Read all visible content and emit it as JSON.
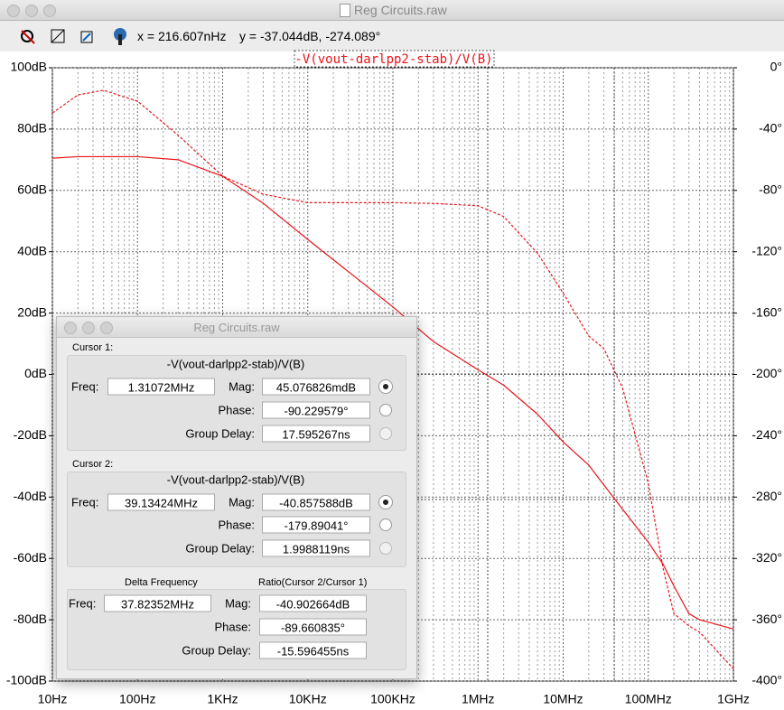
{
  "window": {
    "title": "Reg Circuits.raw"
  },
  "toolbar": {
    "x_readout": "x = 216.607nHz",
    "y_readout": "y = -37.044dB, -274.089°"
  },
  "chart_data": {
    "type": "line",
    "title": "-V(vout-darlpp2-stab)/V(B)",
    "x_scale": "log",
    "grid": true,
    "x": [
      10,
      20,
      40,
      100,
      300,
      1000,
      3000,
      10000,
      100000,
      300000,
      1000000,
      2000000,
      5000000,
      10000000,
      20000000,
      30000000,
      50000000,
      100000000,
      150000000,
      200000000,
      300000000,
      400000000,
      1000000000
    ],
    "series": [
      {
        "color": "#e8141b",
        "style": "solid",
        "values": [
          70.5,
          71,
          71,
          71,
          70,
          64.6,
          55.8,
          44,
          22,
          10.7,
          1.5,
          -3.5,
          -13,
          -22,
          -29.6,
          -36,
          -44,
          -54.7,
          -62,
          -69,
          -78,
          -80,
          -83
        ]
      },
      {
        "color": "#e8141b",
        "style": "dashed",
        "axis": "y2",
        "values": [
          -29.5,
          -17.7,
          -14.7,
          -21.8,
          -44,
          -70.7,
          -82.5,
          -88,
          -88,
          -88.5,
          -90,
          -97,
          -121,
          -147,
          -175,
          -183,
          -209,
          -271,
          -327,
          -356,
          -364,
          -368,
          -392
        ]
      }
    ],
    "xlim": [
      10,
      1000000000
    ],
    "xticks": [
      {
        "value": 10,
        "label": "10Hz"
      },
      {
        "value": 100,
        "label": "100Hz"
      },
      {
        "value": 1000,
        "label": "1KHz"
      },
      {
        "value": 10000,
        "label": "10KHz"
      },
      {
        "value": 100000,
        "label": "100KHz"
      },
      {
        "value": 1000000,
        "label": "1MHz"
      },
      {
        "value": 10000000,
        "label": "10MHz"
      },
      {
        "value": 100000000,
        "label": "100MHz"
      },
      {
        "value": 1000000000,
        "label": "1GHz"
      }
    ],
    "ylim": [
      -100,
      100
    ],
    "yticks": [
      {
        "value": 100,
        "label": "100dB"
      },
      {
        "value": 80,
        "label": "80dB"
      },
      {
        "value": 60,
        "label": "60dB"
      },
      {
        "value": 40,
        "label": "40dB"
      },
      {
        "value": 20,
        "label": "20dB"
      },
      {
        "value": 0,
        "label": "0dB"
      },
      {
        "value": -20,
        "label": "-20dB"
      },
      {
        "value": -40,
        "label": "-40dB"
      },
      {
        "value": -60,
        "label": "-60dB"
      },
      {
        "value": -80,
        "label": "-80dB"
      },
      {
        "value": -100,
        "label": "-100dB"
      }
    ],
    "y2lim": [
      -400,
      0
    ],
    "y2ticks": [
      {
        "value": 0,
        "label": "0°"
      },
      {
        "value": -40,
        "label": "-40°"
      },
      {
        "value": -80,
        "label": "-80°"
      },
      {
        "value": -120,
        "label": "-120°"
      },
      {
        "value": -160,
        "label": "-160°"
      },
      {
        "value": -200,
        "label": "-200°"
      },
      {
        "value": -240,
        "label": "-240°"
      },
      {
        "value": -280,
        "label": "-280°"
      },
      {
        "value": -320,
        "label": "-320°"
      },
      {
        "value": -360,
        "label": "-360°"
      },
      {
        "value": -400,
        "label": "-400°"
      }
    ]
  },
  "dialog": {
    "title": "Reg Circuits.raw",
    "cursor1": {
      "heading": "Cursor 1:",
      "trace": "-V(vout-darlpp2-stab)/V(B)",
      "freq_label": "Freq:",
      "freq": "1.31072MHz",
      "rows": [
        {
          "label": "Mag:",
          "value": "45.076826mdB"
        },
        {
          "label": "Phase:",
          "value": "-90.229579°"
        },
        {
          "label": "Group Delay:",
          "value": "17.595267ns"
        }
      ]
    },
    "cursor2": {
      "heading": "Cursor 2:",
      "trace": "-V(vout-darlpp2-stab)/V(B)",
      "freq_label": "Freq:",
      "freq": "39.13424MHz",
      "rows": [
        {
          "label": "Mag:",
          "value": "-40.857588dB"
        },
        {
          "label": "Phase:",
          "value": "-179.89041°"
        },
        {
          "label": "Group Delay:",
          "value": "1.9988119ns"
        }
      ]
    },
    "delta": {
      "heading": "Delta Frequency",
      "ratio_heading": "Ratio(Cursor 2/Cursor 1)",
      "freq_label": "Freq:",
      "freq": "37.82352MHz",
      "rows": [
        {
          "label": "Mag:",
          "value": "-40.902664dB"
        },
        {
          "label": "Phase:",
          "value": "-89.660835°"
        },
        {
          "label": "Group Delay:",
          "value": "-15.596455ns"
        }
      ]
    }
  }
}
